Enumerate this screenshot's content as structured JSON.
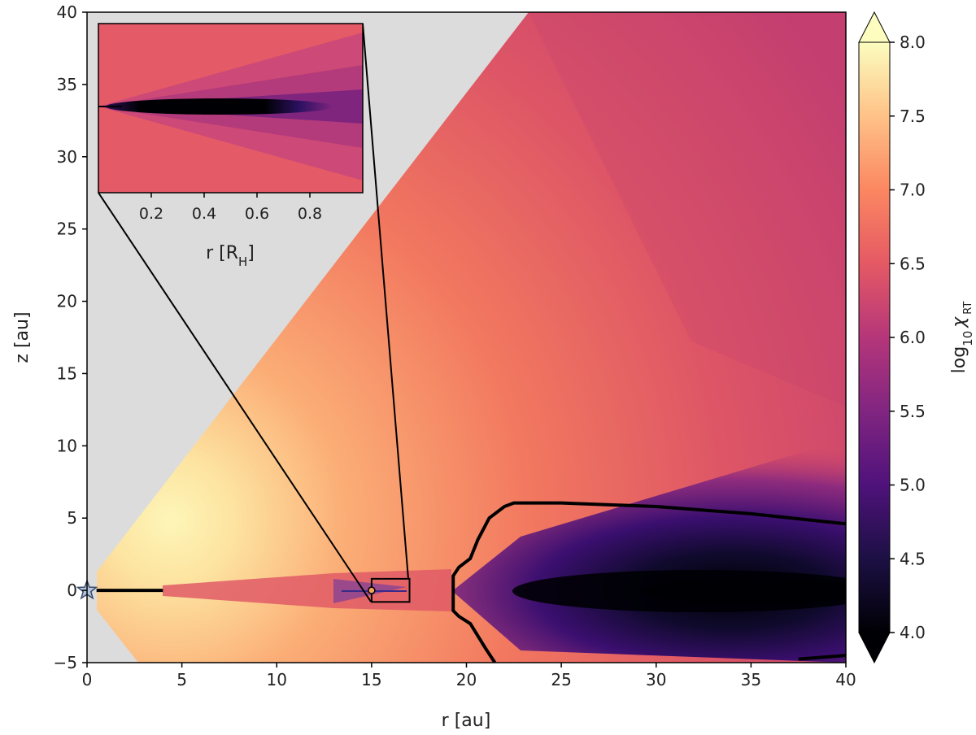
{
  "chart_data": {
    "type": "heatmap",
    "main": {
      "xlabel": "r [au]",
      "ylabel": "z [au]",
      "xlim": [
        0,
        40
      ],
      "ylim": [
        -5,
        40
      ],
      "xticks": [
        "0",
        "5",
        "10",
        "15",
        "20",
        "25",
        "30",
        "35",
        "40"
      ],
      "yticks": [
        "−5",
        "0",
        "5",
        "10",
        "15",
        "20",
        "25",
        "30",
        "35",
        "40"
      ],
      "masked_region_color": "#dcdcdc",
      "star": {
        "r": 0,
        "z": 0,
        "color": "#b0c4de"
      },
      "planet": {
        "r": 15,
        "z": 0,
        "color": "#f5a35a"
      },
      "zoom_box": {
        "r": [
          15,
          17
        ],
        "z": [
          -0.8,
          0.8
        ]
      },
      "contour": [
        {
          "r": 40,
          "z": 4.6
        },
        {
          "r": 35,
          "z": 5.3
        },
        {
          "r": 30,
          "z": 5.8
        },
        {
          "r": 25,
          "z": 6.05
        },
        {
          "r": 22.5,
          "z": 6.05
        },
        {
          "r": 22,
          "z": 5.8
        },
        {
          "r": 21.2,
          "z": 5
        },
        {
          "r": 20.6,
          "z": 3.5
        },
        {
          "r": 20.2,
          "z": 2.2
        },
        {
          "r": 19.6,
          "z": 1.6
        },
        {
          "r": 19.3,
          "z": 1.0
        },
        {
          "r": 19.3,
          "z": -1.4
        },
        {
          "r": 19.6,
          "z": -1.8
        },
        {
          "r": 20.2,
          "z": -2.3
        },
        {
          "r": 21.0,
          "z": -4.0
        },
        {
          "r": 21.5,
          "z": -5.0
        }
      ],
      "contour_lower_right": [
        {
          "r": 37.5,
          "z": -4.75
        },
        {
          "r": 40,
          "z": -4.5
        }
      ],
      "inner_disk_line": {
        "r": [
          0.5,
          4
        ],
        "z": 0
      }
    },
    "inset": {
      "xlabel": "r [R",
      "xlabel_sub": "H",
      "xlabel_end": "]",
      "xlim": [
        0,
        1
      ],
      "xticks": [
        "0.2",
        "0.4",
        "0.6",
        "0.8"
      ],
      "xtick_values": [
        0.2,
        0.4,
        0.6,
        0.8
      ]
    },
    "colorbar": {
      "label_prefix": "log",
      "label_sub": "10",
      "label_symbol": "χ",
      "label_sub2": "RT",
      "range": [
        4.0,
        8.0
      ],
      "ticks": [
        "4.0",
        "4.5",
        "5.0",
        "5.5",
        "6.0",
        "6.5",
        "7.0",
        "7.5",
        "8.0"
      ],
      "tick_values": [
        4.0,
        4.5,
        5.0,
        5.5,
        6.0,
        6.5,
        7.0,
        7.5,
        8.0
      ],
      "extend": "both",
      "colormap": "magma",
      "colormap_stops": [
        "#000004",
        "#1c1044",
        "#4f127b",
        "#812581",
        "#b5367a",
        "#e55964",
        "#fb8761",
        "#fec287",
        "#fcfdbf"
      ]
    }
  }
}
